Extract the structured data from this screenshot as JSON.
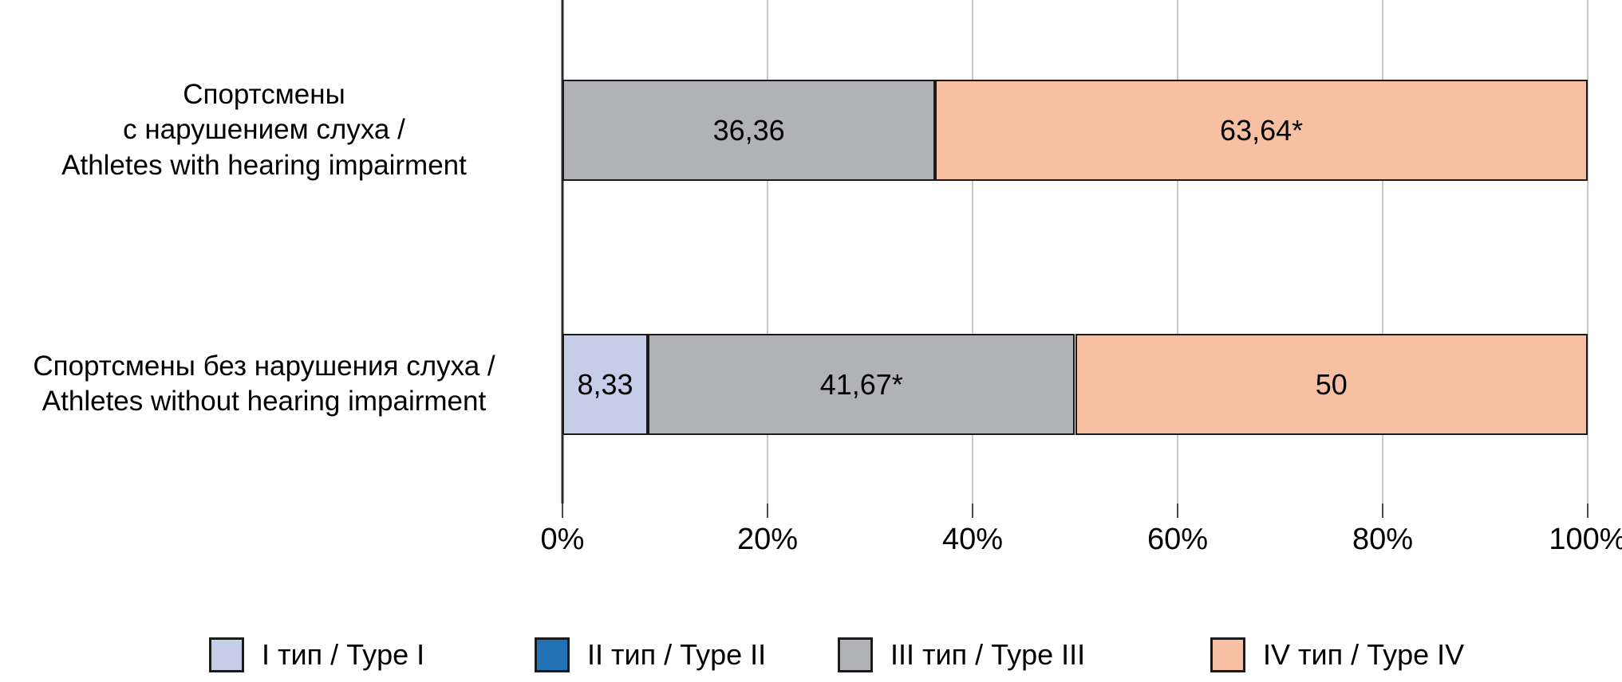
{
  "chart_data": {
    "type": "bar",
    "orientation": "horizontal-stacked",
    "title": "",
    "xlabel": "",
    "ylabel": "",
    "xlim": [
      0,
      100
    ],
    "x_ticks": [
      "0%",
      "20%",
      "40%",
      "60%",
      "80%",
      "100%"
    ],
    "grid": true,
    "legend_position": "bottom",
    "categories": [
      "Спортсмены\nс нарушением слуха /\nAthletes with hearing impairment",
      "Спортсмены без нарушения слуха /\nAthletes without hearing impairment"
    ],
    "series": [
      {
        "name": "I тип / Type I",
        "color": "#c6cde9",
        "values": [
          0,
          8.33
        ],
        "value_labels": [
          "",
          "8,33"
        ]
      },
      {
        "name": "II тип / Type II",
        "color": "#2173b6",
        "values": [
          0,
          0
        ],
        "value_labels": [
          "",
          ""
        ]
      },
      {
        "name": "III тип / Type III",
        "color": "#b1b2b6",
        "values": [
          36.36,
          41.67
        ],
        "value_labels": [
          "36,36",
          "41,67*"
        ]
      },
      {
        "name": "IV тип / Type IV",
        "color": "#f8c0a3",
        "values": [
          63.64,
          50
        ],
        "value_labels": [
          "63,64*",
          "50"
        ]
      }
    ],
    "colors": {
      "gridline": "#c9c9c9",
      "zero_axis_line": "#2b2b2b",
      "tick_mark": "#4a4a4a",
      "bar_border": "#1a1a1a",
      "text": "#000000",
      "background": "#ffffff"
    }
  }
}
